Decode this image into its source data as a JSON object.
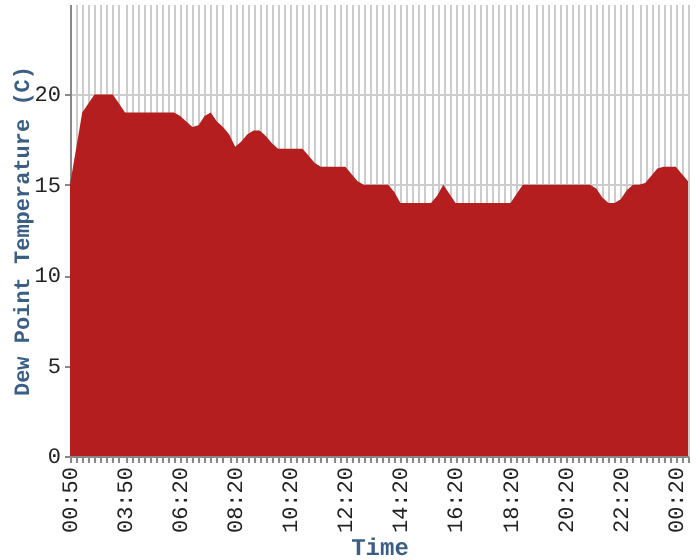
{
  "chart_data": {
    "type": "area",
    "xlabel": "Time",
    "ylabel": "Dew Point Temperature (C)",
    "categories": [
      "00:50",
      null,
      null,
      null,
      null,
      null,
      null,
      null,
      null,
      "03:50",
      null,
      null,
      null,
      null,
      null,
      null,
      null,
      null,
      "06:20",
      null,
      null,
      null,
      null,
      null,
      null,
      null,
      null,
      "08:20",
      null,
      null,
      null,
      null,
      null,
      null,
      null,
      null,
      "10:20",
      null,
      null,
      null,
      null,
      null,
      null,
      null,
      null,
      "12:20",
      null,
      null,
      null,
      null,
      null,
      null,
      null,
      null,
      "14:20",
      null,
      null,
      null,
      null,
      null,
      null,
      null,
      null,
      "16:20",
      null,
      null,
      null,
      null,
      null,
      null,
      null,
      null,
      "18:20",
      null,
      null,
      null,
      null,
      null,
      null,
      null,
      null,
      "20:20",
      null,
      null,
      null,
      null,
      null,
      null,
      null,
      null,
      "22:20",
      null,
      null,
      null,
      null,
      null,
      null,
      null,
      null,
      "00:20",
      null,
      null
    ],
    "series": [
      {
        "color": "#b41e1e",
        "values": [
          15,
          17,
          19,
          19.5,
          20,
          20,
          20,
          20,
          19.5,
          19,
          19,
          19,
          19,
          19,
          19,
          19,
          19,
          19,
          18.8,
          18.5,
          18.2,
          18.3,
          18.8,
          19,
          18.5,
          18.2,
          17.8,
          17.1,
          17.4,
          17.8,
          18,
          18,
          17.7,
          17.3,
          17,
          17,
          17,
          17,
          17,
          16.6,
          16.2,
          16,
          16,
          16,
          16,
          16,
          15.6,
          15.2,
          15,
          15,
          15,
          15,
          15,
          14.6,
          14,
          14,
          14,
          14,
          14,
          14,
          14.4,
          15,
          14.5,
          14,
          14,
          14,
          14,
          14,
          14,
          14,
          14,
          14,
          14,
          14.5,
          15,
          15,
          15,
          15,
          15,
          15,
          15,
          15,
          15,
          15,
          15,
          15,
          14.8,
          14.3,
          14,
          14,
          14.2,
          14.7,
          15,
          15,
          15.1,
          15.5,
          15.9,
          16,
          16,
          16,
          15.6,
          15.2
        ]
      }
    ],
    "ylim": [
      0,
      25
    ],
    "yticks": [
      0,
      5,
      10,
      15,
      20
    ],
    "grid": true
  }
}
